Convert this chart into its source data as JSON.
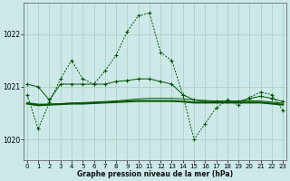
{
  "title": "Graphe pression niveau de la mer (hPa)",
  "bg_color": "#cce8e8",
  "line_color": "#005500",
  "grid_color": "#aaccbb",
  "xlim": [
    -0.3,
    23.3
  ],
  "ylim": [
    1019.6,
    1022.6
  ],
  "x_ticks": [
    0,
    1,
    2,
    3,
    4,
    5,
    6,
    7,
    8,
    9,
    10,
    11,
    12,
    13,
    14,
    15,
    16,
    17,
    18,
    19,
    20,
    21,
    22,
    23
  ],
  "y_ticks": [
    1020,
    1021,
    1022
  ],
  "s1_dotted": [
    1020.85,
    1020.2,
    1020.7,
    1021.15,
    1021.5,
    1021.15,
    1021.05,
    1021.3,
    1021.6,
    1022.05,
    1022.35,
    1022.4,
    1021.65,
    1021.5,
    1020.85,
    1020.0,
    1020.3,
    1020.6,
    1020.75,
    1020.65,
    1020.8,
    1020.9,
    1020.85,
    1020.55
  ],
  "s2_solid_markers": [
    1021.05,
    1021.0,
    1020.75,
    1021.05,
    1021.05,
    1021.05,
    1021.05,
    1021.05,
    1021.1,
    1021.12,
    1021.15,
    1021.15,
    1021.1,
    1021.05,
    1020.85,
    1020.75,
    1020.72,
    1020.72,
    1020.72,
    1020.72,
    1020.78,
    1020.82,
    1020.78,
    1020.72
  ],
  "s3_flat_thick": [
    1020.68,
    1020.65,
    1020.66,
    1020.67,
    1020.68,
    1020.68,
    1020.69,
    1020.7,
    1020.71,
    1020.72,
    1020.73,
    1020.73,
    1020.73,
    1020.73,
    1020.72,
    1020.7,
    1020.7,
    1020.7,
    1020.7,
    1020.7,
    1020.7,
    1020.7,
    1020.68,
    1020.66
  ],
  "s4_flat_thin": [
    1020.7,
    1020.67,
    1020.67,
    1020.68,
    1020.69,
    1020.7,
    1020.71,
    1020.72,
    1020.73,
    1020.75,
    1020.77,
    1020.78,
    1020.78,
    1020.78,
    1020.77,
    1020.75,
    1020.74,
    1020.73,
    1020.73,
    1020.73,
    1020.73,
    1020.73,
    1020.71,
    1020.69
  ]
}
